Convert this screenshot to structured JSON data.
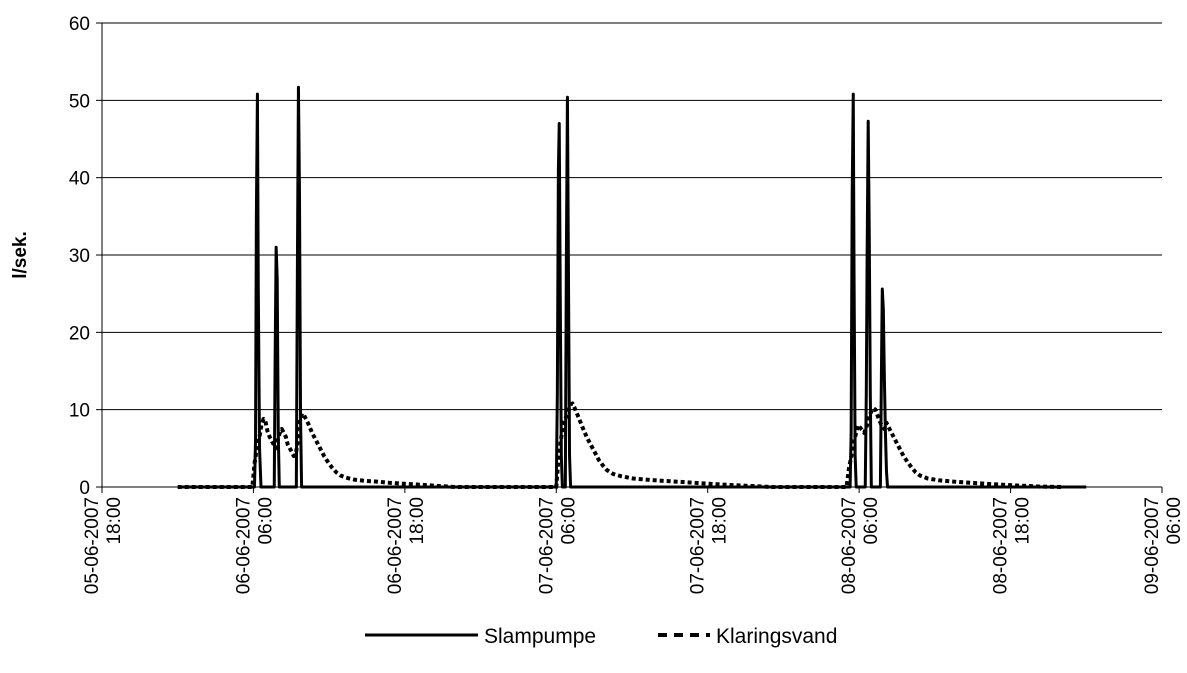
{
  "chart_data": {
    "type": "line",
    "title": "",
    "xlabel": "",
    "ylabel": "l/sek.",
    "ylim": [
      0,
      60
    ],
    "yticks": [
      0,
      10,
      20,
      30,
      40,
      50,
      60
    ],
    "xlim": [
      "2007-06-05 18:00",
      "2007-06-09 06:00"
    ],
    "xtick_labels": [
      {
        "date": "05-06-2007",
        "time": "18:00",
        "x": "2007-06-05 18:00"
      },
      {
        "date": "06-06-2007",
        "time": "06:00",
        "x": "2007-06-06 06:00"
      },
      {
        "date": "06-06-2007",
        "time": "18:00",
        "x": "2007-06-06 18:00"
      },
      {
        "date": "07-06-2007",
        "time": "06:00",
        "x": "2007-06-07 06:00"
      },
      {
        "date": "07-06-2007",
        "time": "18:00",
        "x": "2007-06-07 18:00"
      },
      {
        "date": "08-06-2007",
        "time": "06:00",
        "x": "2007-06-08 06:00"
      },
      {
        "date": "08-06-2007",
        "time": "18:00",
        "x": "2007-06-08 18:00"
      },
      {
        "date": "09-06-2007",
        "time": "06:00",
        "x": "2007-06-09 06:00"
      }
    ],
    "grid": "horizontal",
    "legend": "bottom",
    "series": [
      {
        "name": "Slampumpe",
        "style": "solid",
        "color": "#000000",
        "points": [
          [
            "2007-06-06 00:00",
            0
          ],
          [
            "2007-06-06 06:05",
            0
          ],
          [
            "2007-06-06 06:10",
            6
          ],
          [
            "2007-06-06 06:14",
            35
          ],
          [
            "2007-06-06 06:19",
            50.8
          ],
          [
            "2007-06-06 06:23",
            26
          ],
          [
            "2007-06-06 06:29",
            5
          ],
          [
            "2007-06-06 06:36",
            0
          ],
          [
            "2007-06-06 07:39",
            0
          ],
          [
            "2007-06-06 07:43",
            16
          ],
          [
            "2007-06-06 07:48",
            31
          ],
          [
            "2007-06-06 07:53",
            27
          ],
          [
            "2007-06-06 07:58",
            7
          ],
          [
            "2007-06-06 08:03",
            0
          ],
          [
            "2007-06-06 09:24",
            0
          ],
          [
            "2007-06-06 09:29",
            28
          ],
          [
            "2007-06-06 09:34",
            51.7
          ],
          [
            "2007-06-06 09:39",
            38
          ],
          [
            "2007-06-06 09:44",
            9
          ],
          [
            "2007-06-06 09:49",
            0
          ],
          [
            "2007-06-07 06:00",
            0
          ],
          [
            "2007-06-07 06:05",
            12
          ],
          [
            "2007-06-07 06:10",
            41
          ],
          [
            "2007-06-07 06:14",
            47
          ],
          [
            "2007-06-07 06:19",
            24
          ],
          [
            "2007-06-07 06:24",
            4
          ],
          [
            "2007-06-07 06:29",
            0
          ],
          [
            "2007-06-07 06:43",
            0
          ],
          [
            "2007-06-07 06:48",
            30
          ],
          [
            "2007-06-07 06:53",
            50.4
          ],
          [
            "2007-06-07 06:58",
            27
          ],
          [
            "2007-06-07 07:03",
            4
          ],
          [
            "2007-06-07 07:08",
            0
          ],
          [
            "2007-06-08 05:17",
            0
          ],
          [
            "2007-06-08 05:22",
            7
          ],
          [
            "2007-06-08 05:27",
            38
          ],
          [
            "2007-06-08 05:32",
            50.8
          ],
          [
            "2007-06-08 05:36",
            26
          ],
          [
            "2007-06-08 05:41",
            4
          ],
          [
            "2007-06-08 05:46",
            0
          ],
          [
            "2007-06-08 06:29",
            0
          ],
          [
            "2007-06-08 06:34",
            12
          ],
          [
            "2007-06-08 06:38",
            30
          ],
          [
            "2007-06-08 06:43",
            47.3
          ],
          [
            "2007-06-08 06:48",
            33
          ],
          [
            "2007-06-08 06:53",
            12
          ],
          [
            "2007-06-08 06:58",
            0
          ],
          [
            "2007-06-08 07:41",
            0
          ],
          [
            "2007-06-08 07:46",
            15
          ],
          [
            "2007-06-08 07:50",
            25.6
          ],
          [
            "2007-06-08 07:55",
            23
          ],
          [
            "2007-06-08 08:00",
            14
          ],
          [
            "2007-06-08 08:05",
            7
          ],
          [
            "2007-06-08 08:10",
            2
          ],
          [
            "2007-06-08 08:15",
            0
          ],
          [
            "2007-06-09 00:00",
            0
          ]
        ]
      },
      {
        "name": "Klaringsvand",
        "style": "dashed",
        "color": "#000000",
        "points": [
          [
            "2007-06-06 00:00",
            0
          ],
          [
            "2007-06-06 05:55",
            0
          ],
          [
            "2007-06-06 06:05",
            3
          ],
          [
            "2007-06-06 06:19",
            5.5
          ],
          [
            "2007-06-06 06:29",
            6.5
          ],
          [
            "2007-06-06 06:38",
            8
          ],
          [
            "2007-06-06 06:48",
            8.8
          ],
          [
            "2007-06-06 06:57",
            8.5
          ],
          [
            "2007-06-06 07:07",
            7.2
          ],
          [
            "2007-06-06 07:17",
            6.5
          ],
          [
            "2007-06-06 07:26",
            6
          ],
          [
            "2007-06-06 07:36",
            5.5
          ],
          [
            "2007-06-06 07:46",
            5
          ],
          [
            "2007-06-06 07:55",
            6
          ],
          [
            "2007-06-06 08:05",
            7
          ],
          [
            "2007-06-06 08:15",
            7.5
          ],
          [
            "2007-06-06 08:24",
            7
          ],
          [
            "2007-06-06 08:34",
            6.5
          ],
          [
            "2007-06-06 08:43",
            5.5
          ],
          [
            "2007-06-06 08:53",
            5
          ],
          [
            "2007-06-06 09:03",
            4.5
          ],
          [
            "2007-06-06 09:12",
            4
          ],
          [
            "2007-06-06 09:22",
            4.3
          ],
          [
            "2007-06-06 09:31",
            6
          ],
          [
            "2007-06-06 09:41",
            8.5
          ],
          [
            "2007-06-06 09:51",
            9.5
          ],
          [
            "2007-06-06 10:00",
            9.3
          ],
          [
            "2007-06-06 10:19",
            8.3
          ],
          [
            "2007-06-06 10:39",
            7
          ],
          [
            "2007-06-06 10:58",
            6
          ],
          [
            "2007-06-06 11:17",
            5
          ],
          [
            "2007-06-06 11:36",
            4
          ],
          [
            "2007-06-06 11:55",
            3.2
          ],
          [
            "2007-06-06 12:14",
            2.5
          ],
          [
            "2007-06-06 12:34",
            1.9
          ],
          [
            "2007-06-06 12:53",
            1.5
          ],
          [
            "2007-06-06 13:21",
            1.2
          ],
          [
            "2007-06-06 14:00",
            0.95
          ],
          [
            "2007-06-06 14:48",
            0.8
          ],
          [
            "2007-06-06 15:46",
            0.7
          ],
          [
            "2007-06-06 16:43",
            0.55
          ],
          [
            "2007-06-06 17:41",
            0.45
          ],
          [
            "2007-06-06 19:07",
            0.3
          ],
          [
            "2007-06-06 20:34",
            0.15
          ],
          [
            "2007-06-06 22:00",
            0
          ],
          [
            "2007-06-07 06:00",
            0
          ],
          [
            "2007-06-07 06:10",
            3.5
          ],
          [
            "2007-06-07 06:24",
            6.5
          ],
          [
            "2007-06-07 06:38",
            8.5
          ],
          [
            "2007-06-07 06:53",
            9.5
          ],
          [
            "2007-06-07 07:07",
            10.7
          ],
          [
            "2007-06-07 07:17",
            10.8
          ],
          [
            "2007-06-07 07:26",
            10.3
          ],
          [
            "2007-06-07 07:46",
            9
          ],
          [
            "2007-06-07 08:05",
            7.7
          ],
          [
            "2007-06-07 08:24",
            6.5
          ],
          [
            "2007-06-07 08:43",
            5.5
          ],
          [
            "2007-06-07 09:03",
            4.5
          ],
          [
            "2007-06-07 09:22",
            3.5
          ],
          [
            "2007-06-07 09:41",
            2.8
          ],
          [
            "2007-06-07 10:00",
            2.2
          ],
          [
            "2007-06-07 10:29",
            1.7
          ],
          [
            "2007-06-07 11:07",
            1.4
          ],
          [
            "2007-06-07 12:05",
            1.1
          ],
          [
            "2007-06-07 13:31",
            0.9
          ],
          [
            "2007-06-07 14:58",
            0.75
          ],
          [
            "2007-06-07 16:24",
            0.6
          ],
          [
            "2007-06-07 17:50",
            0.45
          ],
          [
            "2007-06-07 19:17",
            0.3
          ],
          [
            "2007-06-07 21:12",
            0.15
          ],
          [
            "2007-06-07 23:07",
            0
          ],
          [
            "2007-06-08 05:00",
            0
          ],
          [
            "2007-06-08 05:12",
            2.5
          ],
          [
            "2007-06-08 05:27",
            4.5
          ],
          [
            "2007-06-08 05:41",
            6.5
          ],
          [
            "2007-06-08 05:55",
            8
          ],
          [
            "2007-06-08 06:10",
            7.5
          ],
          [
            "2007-06-08 06:24",
            7
          ],
          [
            "2007-06-08 06:38",
            8
          ],
          [
            "2007-06-08 06:53",
            9.5
          ],
          [
            "2007-06-08 07:07",
            10.2
          ],
          [
            "2007-06-08 07:17",
            10
          ],
          [
            "2007-06-08 07:31",
            9
          ],
          [
            "2007-06-08 07:46",
            8
          ],
          [
            "2007-06-08 08:00",
            7.5
          ],
          [
            "2007-06-08 08:10",
            8.3
          ],
          [
            "2007-06-08 08:19",
            7.8
          ],
          [
            "2007-06-08 08:34",
            7
          ],
          [
            "2007-06-08 08:53",
            6
          ],
          [
            "2007-06-08 09:12",
            5
          ],
          [
            "2007-06-08 09:31",
            4
          ],
          [
            "2007-06-08 09:51",
            3.2
          ],
          [
            "2007-06-08 10:10",
            2.5
          ],
          [
            "2007-06-08 10:29",
            1.9
          ],
          [
            "2007-06-08 10:48",
            1.5
          ],
          [
            "2007-06-08 11:26",
            1.1
          ],
          [
            "2007-06-08 12:24",
            0.85
          ],
          [
            "2007-06-08 13:50",
            0.65
          ],
          [
            "2007-06-08 15:17",
            0.5
          ],
          [
            "2007-06-08 16:43",
            0.35
          ],
          [
            "2007-06-08 18:29",
            0.2
          ],
          [
            "2007-06-08 20:24",
            0.05
          ],
          [
            "2007-06-08 22:00",
            0
          ]
        ]
      }
    ]
  }
}
